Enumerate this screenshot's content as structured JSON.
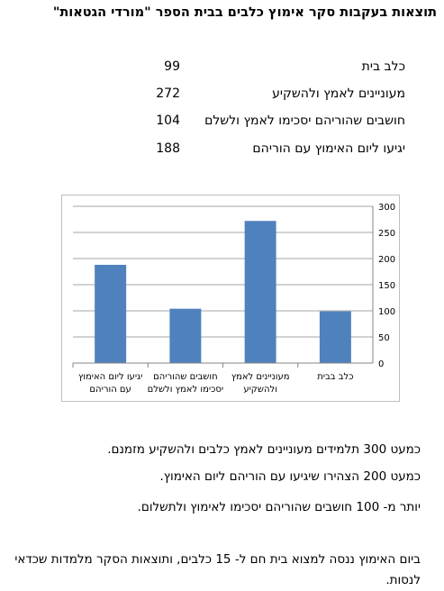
{
  "title": "תוצאות בעקבות סקר אימוץ כלבים בבית הספר \"מורדי הגטאות\"",
  "stats": [
    {
      "label": "כלב בית",
      "value": "99"
    },
    {
      "label": "מעוניינים לאמץ ולהשקיע",
      "value": "272"
    },
    {
      "label": "חושבים שהוריהם יסכימו לאמץ ולשלם",
      "value": "104"
    },
    {
      "label": "יגיעו ליום האימוץ עם הוריהם",
      "value": "188"
    }
  ],
  "chart_data": {
    "type": "bar",
    "categories": [
      "כלב בבית",
      "מעוניינים לאמץ ולהשקיע",
      "חושבים שהוריהם יסכימו לאמץ ולשלם",
      "יגיעו ליום האימוץ עם הוריהם"
    ],
    "category_lines": [
      [
        "כלב בבית"
      ],
      [
        "מעוניינים לאמץ",
        "ולהשקיע"
      ],
      [
        "חושבים שהוריהם",
        "יסכימו לאמץ ולשלם"
      ],
      [
        "יגיעו ליום האימוץ",
        "עם הוריהם"
      ]
    ],
    "values": [
      99,
      272,
      104,
      188
    ],
    "ylim": [
      0,
      300
    ],
    "yticks": [
      "0",
      "50",
      "100",
      "150",
      "200",
      "250",
      "300"
    ],
    "axis_side": "right",
    "category_order": "right-to-left",
    "grid": true,
    "bar_color": "#4f81bd"
  },
  "paragraphs": [
    "כמעט 300 תלמידים מעוניינים לאמץ כלבים ולהשקיע מזמנם.",
    "כמעט 200 הצהירו שיגיעו עם הוריהם ליום האימוץ.",
    "יותר מ- 100 חושבים שהוריהם יסכימו לאימוץ ולתשלום.",
    "ביום האימוץ ננסה למצוא בית חם ל- 15 כלבים, ותוצאות הסקר מלמדות שכדאי לנסות."
  ]
}
